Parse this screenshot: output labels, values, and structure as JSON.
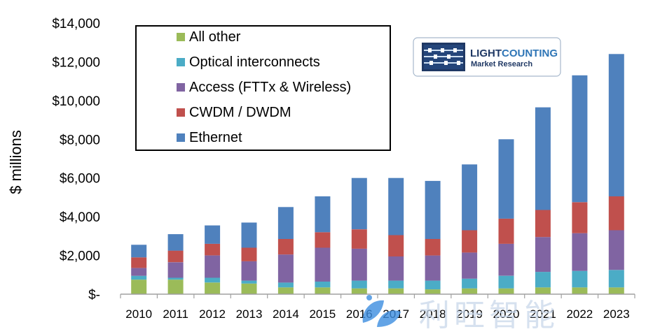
{
  "chart_data": {
    "type": "bar",
    "stacked": true,
    "ylabel": "$ millions",
    "ylim": [
      0,
      14000
    ],
    "y_ticks": [
      {
        "value": 0,
        "label": "$-"
      },
      {
        "value": 2000,
        "label": "$2,000"
      },
      {
        "value": 4000,
        "label": "$4,000"
      },
      {
        "value": 6000,
        "label": "$6,000"
      },
      {
        "value": 8000,
        "label": "$8,000"
      },
      {
        "value": 10000,
        "label": "$10,000"
      },
      {
        "value": 12000,
        "label": "$12,000"
      },
      {
        "value": 14000,
        "label": "$14,000"
      }
    ],
    "categories": [
      "2010",
      "2011",
      "2012",
      "2013",
      "2014",
      "2015",
      "2016",
      "2017",
      "2018",
      "2019",
      "2020",
      "2021",
      "2022",
      "2023"
    ],
    "series": [
      {
        "name": "All other",
        "color": "#9bbb59",
        "values": [
          750,
          750,
          600,
          550,
          350,
          350,
          300,
          300,
          250,
          300,
          300,
          350,
          350,
          350
        ]
      },
      {
        "name": "Optical interconnects",
        "color": "#4bacc6",
        "values": [
          200,
          100,
          250,
          150,
          250,
          300,
          400,
          400,
          450,
          500,
          650,
          800,
          850,
          900
        ]
      },
      {
        "name": "Access (FTTx & Wireless)",
        "color": "#8064a2",
        "values": [
          400,
          800,
          1150,
          1000,
          1450,
          1750,
          1650,
          1250,
          1300,
          1350,
          1650,
          1800,
          1950,
          2050
        ]
      },
      {
        "name": "CWDM / DWDM",
        "color": "#c0504d",
        "values": [
          550,
          600,
          600,
          700,
          800,
          800,
          1000,
          1100,
          850,
          1150,
          1300,
          1400,
          1600,
          1750
        ]
      },
      {
        "name": "Ethernet",
        "color": "#4f81bd",
        "values": [
          650,
          850,
          950,
          1300,
          1650,
          1850,
          2650,
          2950,
          3000,
          3400,
          4100,
          5300,
          6550,
          7350
        ]
      }
    ],
    "legend": {
      "placement": "top-left",
      "order": [
        "All other",
        "Optical interconnects",
        "Access (FTTx & Wireless)",
        "CWDM / DWDM",
        "Ethernet"
      ]
    },
    "grid": false
  },
  "logo": {
    "name_part1": "LIGHT",
    "name_part2": "COUNTING",
    "subtitle": "Market Research",
    "color_dark": "#1f3864",
    "color_light": "#2e75b6"
  },
  "watermark": {
    "text": "利旺智能",
    "icon": "leaf-brand-icon"
  }
}
